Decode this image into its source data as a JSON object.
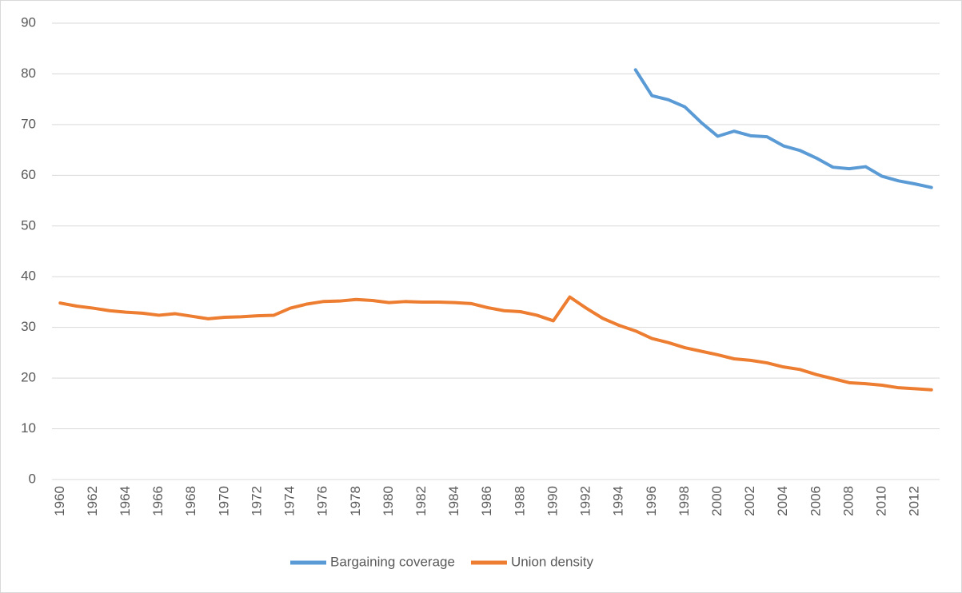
{
  "chart_data": {
    "type": "line",
    "categories": [
      "1960",
      null,
      "1962",
      null,
      "1964",
      null,
      "1966",
      null,
      "1968",
      null,
      "1970",
      null,
      "1972",
      null,
      "1974",
      null,
      "1976",
      null,
      "1978",
      null,
      "1980",
      null,
      "1982",
      null,
      "1984",
      null,
      "1986",
      null,
      "1988",
      null,
      "1990",
      null,
      "1992",
      null,
      "1994",
      null,
      "1996",
      null,
      "1998",
      null,
      "2000",
      null,
      "2002",
      null,
      "2004",
      null,
      "2006",
      null,
      "2008",
      null,
      "2010",
      null,
      "2012",
      null
    ],
    "series": [
      {
        "name": "Bargaining coverage",
        "color": "#5b9bd5",
        "values": [
          null,
          null,
          null,
          null,
          null,
          null,
          null,
          null,
          null,
          null,
          null,
          null,
          null,
          null,
          null,
          null,
          null,
          null,
          null,
          null,
          null,
          null,
          null,
          null,
          null,
          null,
          null,
          null,
          null,
          null,
          null,
          null,
          null,
          null,
          null,
          80.8,
          75.7,
          74.9,
          73.5,
          70.4,
          67.7,
          68.7,
          67.8,
          67.6,
          65.8,
          64.9,
          63.4,
          61.6,
          61.3,
          61.7,
          59.8,
          58.9,
          58.3,
          57.6
        ]
      },
      {
        "name": "Union density",
        "color": "#ed7d31",
        "values": [
          34.8,
          34.2,
          33.8,
          33.3,
          33.0,
          32.8,
          32.4,
          32.7,
          32.2,
          31.7,
          32.0,
          32.1,
          32.3,
          32.4,
          33.8,
          34.6,
          35.1,
          35.2,
          35.5,
          35.3,
          34.9,
          35.1,
          35.0,
          35.0,
          34.9,
          34.7,
          33.9,
          33.3,
          33.1,
          32.4,
          31.3,
          36.0,
          33.8,
          31.8,
          30.4,
          29.3,
          27.8,
          27.0,
          26.0,
          25.3,
          24.6,
          23.8,
          23.5,
          23.0,
          22.2,
          21.7,
          20.7,
          19.9,
          19.1,
          18.9,
          18.6,
          18.1,
          17.9,
          17.7
        ]
      }
    ],
    "ylim": [
      0,
      90
    ],
    "yticks": [
      0,
      10,
      20,
      30,
      40,
      50,
      60,
      70,
      80,
      90
    ],
    "grid": true,
    "legend": "bottom"
  }
}
